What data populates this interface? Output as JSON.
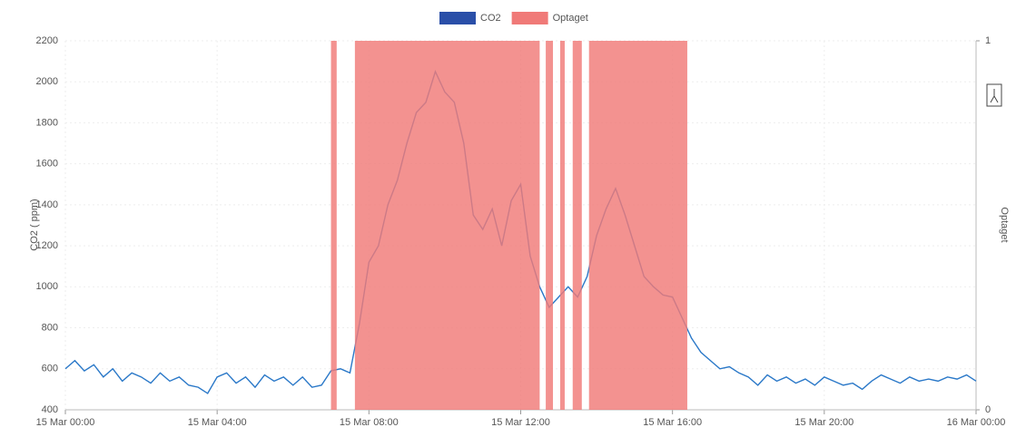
{
  "chart_data": {
    "type": "line",
    "x": [
      0,
      0.25,
      0.5,
      0.75,
      1,
      1.25,
      1.5,
      1.75,
      2,
      2.25,
      2.5,
      2.75,
      3,
      3.25,
      3.5,
      3.75,
      4,
      4.25,
      4.5,
      4.75,
      5,
      5.25,
      5.5,
      5.75,
      6,
      6.25,
      6.5,
      6.75,
      7,
      7.25,
      7.5,
      7.75,
      8,
      8.25,
      8.5,
      8.75,
      9,
      9.25,
      9.5,
      9.75,
      10,
      10.25,
      10.5,
      10.75,
      11,
      11.25,
      11.5,
      11.75,
      12,
      12.25,
      12.5,
      12.75,
      13,
      13.25,
      13.5,
      13.75,
      14,
      14.25,
      14.5,
      14.75,
      15,
      15.25,
      15.5,
      15.75,
      16,
      16.25,
      16.5,
      16.75,
      17,
      17.25,
      17.5,
      17.75,
      18,
      18.25,
      18.5,
      18.75,
      19,
      19.25,
      19.5,
      19.75,
      20,
      20.25,
      20.5,
      20.75,
      21,
      21.25,
      21.5,
      21.75,
      22,
      22.25,
      22.5,
      22.75,
      23,
      23.25,
      23.5,
      23.75,
      24
    ],
    "series": [
      {
        "name": "CO2",
        "color": "#2a78c8",
        "legend_color": "#2a4fa8",
        "values": [
          600,
          640,
          590,
          620,
          560,
          600,
          540,
          580,
          560,
          530,
          580,
          540,
          560,
          520,
          510,
          480,
          560,
          580,
          530,
          560,
          510,
          570,
          540,
          560,
          520,
          560,
          510,
          520,
          590,
          600,
          580,
          820,
          1120,
          1200,
          1400,
          1520,
          1700,
          1850,
          1900,
          2050,
          1950,
          1900,
          1700,
          1350,
          1280,
          1380,
          1200,
          1420,
          1500,
          1150,
          1000,
          900,
          950,
          1000,
          950,
          1050,
          1250,
          1380,
          1480,
          1350,
          1200,
          1050,
          1000,
          960,
          950,
          850,
          750,
          680,
          640,
          600,
          610,
          580,
          560,
          520,
          570,
          540,
          560,
          530,
          550,
          520,
          560,
          540,
          520,
          530,
          500,
          540,
          570,
          550,
          530,
          560,
          540,
          550,
          540,
          560,
          550,
          570,
          540
        ]
      },
      {
        "name": "Optaget",
        "color": "#f07a78",
        "axis": "y2",
        "x": [
          0,
          7.0,
          7.15,
          7.63,
          12.5,
          12.66,
          12.85,
          13.04,
          13.16,
          13.37,
          13.61,
          13.8,
          16.39,
          24
        ],
        "values": [
          0,
          1,
          0,
          1,
          0,
          1,
          0,
          1,
          0,
          1,
          0,
          1,
          0,
          0
        ]
      }
    ],
    "y_label": "CO2 ( ppm)",
    "y2_label": "Optaget",
    "xlim": [
      0,
      24
    ],
    "xticks": [
      {
        "value": 0,
        "label": "15 Mar 00:00"
      },
      {
        "value": 4,
        "label": "15 Mar 04:00"
      },
      {
        "value": 8,
        "label": "15 Mar 08:00"
      },
      {
        "value": 12,
        "label": "15 Mar 12:00"
      },
      {
        "value": 16,
        "label": "15 Mar 16:00"
      },
      {
        "value": 20,
        "label": "15 Mar 20:00"
      },
      {
        "value": 24,
        "label": "16 Mar 00:00"
      }
    ],
    "ylim": [
      400,
      2200
    ],
    "yticks": [
      400,
      600,
      800,
      1000,
      1200,
      1400,
      1600,
      1800,
      2000,
      2200
    ],
    "y2lim": [
      0,
      1
    ],
    "y2ticks": [
      0,
      1
    ],
    "grid": true
  }
}
